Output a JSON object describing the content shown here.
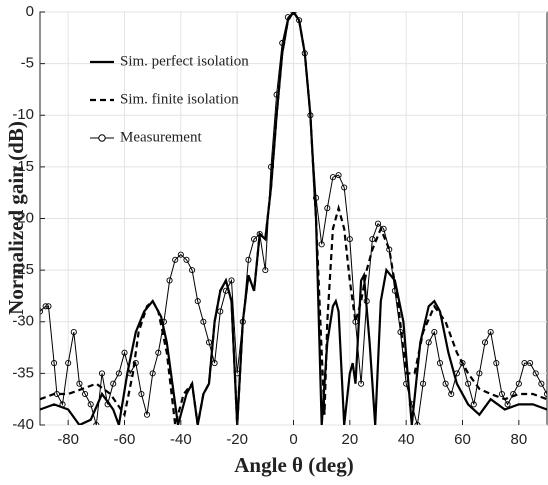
{
  "chart_data": {
    "type": "line",
    "xlabel": "Angle θ (deg)",
    "ylabel": "Normalized gain (dB)",
    "xlim": [
      -90,
      90
    ],
    "ylim": [
      -40,
      0
    ],
    "xticks": [
      -80,
      -60,
      -40,
      -20,
      0,
      20,
      40,
      60,
      80
    ],
    "yticks": [
      -40,
      -35,
      -30,
      -25,
      -20,
      -15,
      -10,
      -5,
      0
    ],
    "grid": true,
    "legend": "upper left",
    "series": [
      {
        "name": "Sim. perfect isolation",
        "color": "#000000",
        "style": "solid",
        "marker": false,
        "x": [
          -90,
          -85,
          -80,
          -76,
          -72,
          -68,
          -64,
          -62,
          -59,
          -56,
          -53,
          -50,
          -47,
          -45,
          -43,
          -41,
          -38,
          -36,
          -34,
          -32,
          -30,
          -28,
          -26,
          -24,
          -22,
          -20,
          -18,
          -16,
          -14,
          -12,
          -10,
          -8,
          -6,
          -4,
          -2,
          0,
          2,
          4,
          6,
          8,
          10,
          12,
          14,
          15,
          16,
          18,
          20,
          21,
          22,
          24,
          25,
          27,
          29,
          31,
          33,
          36,
          39,
          42,
          45,
          48,
          50,
          52,
          55,
          58,
          62,
          66,
          70,
          75,
          80,
          85,
          90
        ],
        "values": [
          -38.5,
          -38,
          -38.5,
          -40,
          -39.5,
          -37,
          -38.5,
          -40,
          -35,
          -31,
          -29,
          -28,
          -29.5,
          -32,
          -36,
          -40,
          -37,
          -36,
          -40,
          -37,
          -36,
          -30,
          -27,
          -26,
          -28,
          -40,
          -30,
          -25.5,
          -27,
          -21.5,
          -22,
          -17,
          -10,
          -4,
          -0.8,
          0,
          -0.8,
          -4,
          -10,
          -20,
          -40,
          -32,
          -28.5,
          -28,
          -29,
          -40,
          -35,
          -34,
          -36,
          -26,
          -25.5,
          -32,
          -40,
          -28,
          -25,
          -26,
          -30,
          -40,
          -32,
          -28.5,
          -28,
          -29,
          -33,
          -36,
          -38,
          -39,
          -37.5,
          -38.5,
          -38,
          -38,
          -38.5
        ]
      },
      {
        "name": "Sim. finite isolation",
        "color": "#000000",
        "style": "dashed",
        "marker": false,
        "x": [
          -90,
          -85,
          -80,
          -75,
          -70,
          -65,
          -60,
          -57,
          -55,
          -52,
          -50,
          -48,
          -45,
          -42,
          -39,
          -36,
          -34,
          -32,
          -30,
          -28,
          -26,
          -24,
          -22,
          -20,
          -18,
          -16,
          -14,
          -12,
          -10,
          -8,
          -6,
          -4,
          -2,
          0,
          2,
          4,
          6,
          8,
          10,
          11,
          12,
          14,
          16,
          18,
          20,
          22,
          24,
          26,
          28,
          31,
          34,
          37,
          40,
          43,
          46,
          50,
          54,
          58,
          62,
          66,
          70,
          75,
          80,
          85,
          90
        ],
        "values": [
          -37.5,
          -37,
          -37,
          -36.5,
          -36,
          -37,
          -39,
          -35,
          -31,
          -28.5,
          -28,
          -29,
          -33,
          -40,
          -37,
          -36,
          -40,
          -37,
          -36,
          -30,
          -27,
          -26,
          -28,
          -40,
          -30,
          -25.5,
          -27,
          -21.5,
          -22,
          -17,
          -10,
          -4,
          -0.8,
          0,
          -0.8,
          -4,
          -10,
          -20,
          -33,
          -39,
          -30,
          -21,
          -19,
          -21,
          -26,
          -30,
          -28,
          -25,
          -23,
          -21,
          -23,
          -28,
          -35,
          -35,
          -31,
          -28.5,
          -30,
          -33,
          -35,
          -36.5,
          -37,
          -37.5,
          -37,
          -37,
          -37.5
        ]
      },
      {
        "name": "Measurement",
        "color": "#000000",
        "style": "thin",
        "marker": true,
        "x": [
          -90,
          -88,
          -87,
          -85,
          -84,
          -82,
          -80,
          -78,
          -76,
          -74,
          -72,
          -70,
          -68,
          -66,
          -64,
          -62,
          -60,
          -58,
          -56,
          -54,
          -52,
          -50,
          -48,
          -46,
          -44,
          -42,
          -40,
          -38,
          -36,
          -34,
          -32,
          -30,
          -28,
          -26,
          -24,
          -22,
          -20,
          -18,
          -16,
          -14,
          -12,
          -10,
          -8,
          -6,
          -4,
          -2,
          0,
          2,
          4,
          6,
          8,
          10,
          12,
          14,
          16,
          18,
          20,
          22,
          24,
          26,
          28,
          30,
          32,
          34,
          36,
          38,
          40,
          42,
          44,
          46,
          48,
          50,
          52,
          54,
          56,
          58,
          60,
          62,
          64,
          66,
          68,
          70,
          72,
          74,
          76,
          78,
          80,
          82,
          84,
          86,
          88,
          90
        ],
        "values": [
          -29,
          -28.5,
          -28.5,
          -34,
          -37,
          -38,
          -34,
          -31,
          -36,
          -37,
          -38,
          -40,
          -35,
          -38,
          -36,
          -35,
          -33,
          -35,
          -34,
          -37,
          -39,
          -35,
          -33,
          -30,
          -26,
          -24,
          -23.5,
          -24,
          -25,
          -28,
          -30,
          -32,
          -34,
          -29,
          -27,
          -26,
          -35,
          -30,
          -24,
          -22,
          -21.5,
          -25,
          -15,
          -8,
          -3,
          -0.5,
          0,
          -0.8,
          -4,
          -10,
          -18,
          -22.5,
          -19,
          -16,
          -15.8,
          -17,
          -22,
          -30,
          -36,
          -28,
          -22,
          -20.5,
          -21,
          -23,
          -27,
          -31,
          -36,
          -38,
          -40,
          -36,
          -32,
          -31,
          -34,
          -36,
          -37,
          -35,
          -34,
          -36,
          -38,
          -35,
          -32,
          -31,
          -34,
          -37,
          -38,
          -37,
          -36,
          -34,
          -34,
          -35,
          -36,
          -37
        ]
      }
    ]
  }
}
